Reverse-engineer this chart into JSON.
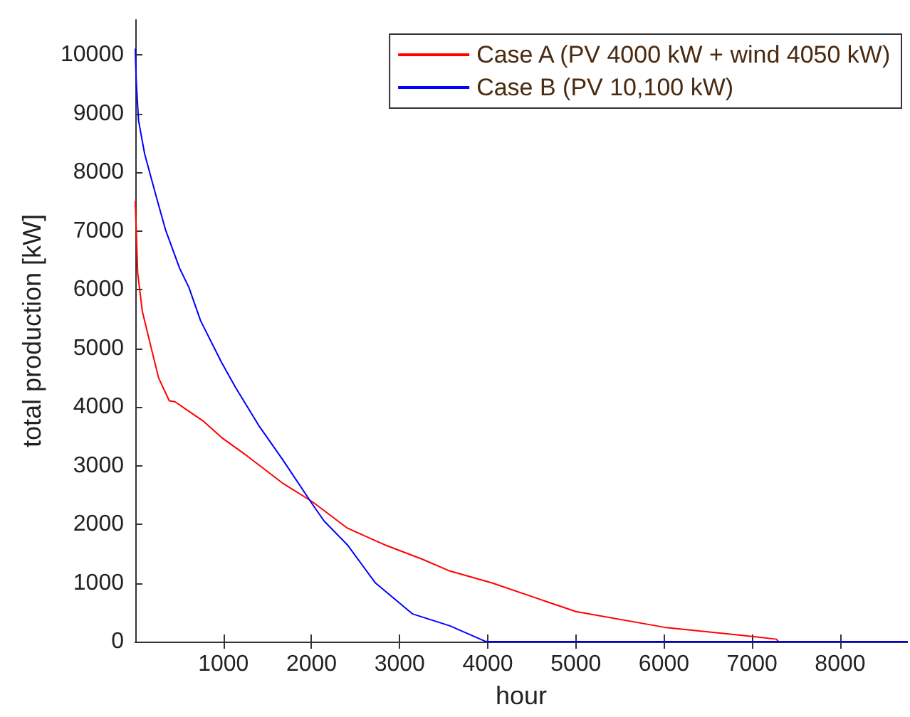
{
  "chart_data": {
    "type": "line",
    "xlabel": "hour",
    "ylabel": "total production [kW]",
    "xlim": [
      0,
      8760
    ],
    "xticks": [
      1000,
      2000,
      3000,
      4000,
      5000,
      6000,
      7000,
      8000
    ],
    "ylim": [
      0,
      10600
    ],
    "yticks": [
      0,
      1000,
      2000,
      3000,
      4000,
      5000,
      6000,
      7000,
      8000,
      9000,
      10000
    ],
    "grid": false,
    "legend": "top right",
    "marker": "none",
    "line_style": "solid",
    "series": [
      {
        "name": "Case A (PV 4000 kW + wind 4050 kW)",
        "color": "#ff0000",
        "x": [
          0,
          27,
          80,
          185,
          265,
          386,
          450,
          767,
          979,
          1243,
          1667,
          2011,
          2407,
          2831,
          3254,
          3571,
          4048,
          5000,
          6005,
          7037,
          7275,
          7300,
          8760
        ],
        "values": [
          7500,
          6290,
          5630,
          4980,
          4495,
          4105,
          4090,
          3765,
          3480,
          3195,
          2707,
          2383,
          1935,
          1650,
          1407,
          1203,
          1000,
          512,
          244,
          81,
          41,
          0,
          0
        ]
      },
      {
        "name": "Case B (PV 10,100 kW)",
        "color": "#0000ff",
        "x": [
          0,
          11,
          37,
          106,
          238,
          344,
          503,
          608,
          741,
          979,
          1138,
          1402,
          1667,
          2011,
          2143,
          2407,
          2725,
          3148,
          3571,
          3968,
          4000,
          8760
        ],
        "values": [
          10100,
          9540,
          8885,
          8317,
          7585,
          7017,
          6366,
          6041,
          5471,
          4760,
          4334,
          3683,
          3115,
          2341,
          2056,
          1650,
          1000,
          471,
          268,
          7,
          0,
          0
        ]
      }
    ]
  }
}
